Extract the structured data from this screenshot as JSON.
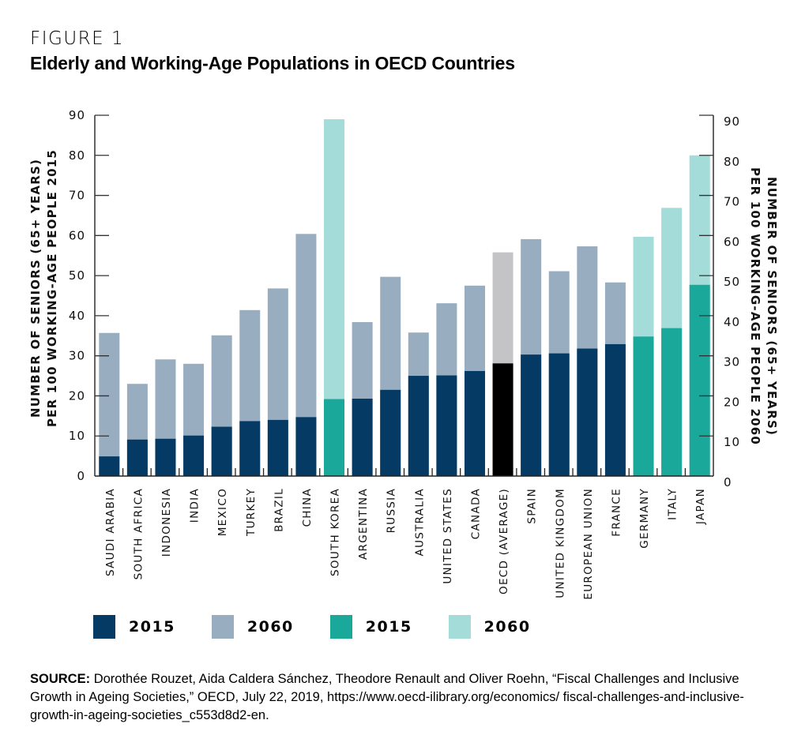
{
  "figure_label": "FIGURE 1",
  "title": "Elderly and Working-Age Populations in OECD Countries",
  "source_label": "SOURCE:",
  "source_text": "Dorothée Rouzet, Aida Caldera Sánchez, Theodore Renault and Oliver Roehn, “Fiscal Challenges and Inclusive Growth in Ageing Societies,” OECD, July 22, 2019, https://www.oecd-ilibrary.org/economics/ fiscal-challenges-and-inclusive-growth-in-ageing-societies_c553d8d2-en.",
  "colors": {
    "2015_default": "#043a63",
    "2060_default": "#98adbf",
    "2015_oecd": "#000000",
    "2060_oecd": "#c4c4c6",
    "2015_highlight": "#1aa89a",
    "2060_highlight": "#a3dcd8"
  },
  "legend": [
    {
      "label": "2015",
      "color": "#043a63"
    },
    {
      "label": "2060",
      "color": "#98adbf"
    },
    {
      "label": "2015",
      "color": "#1aa89a"
    },
    {
      "label": "2060",
      "color": "#a3dcd8"
    }
  ],
  "chart_data": {
    "type": "bar",
    "stacking": "overlay",
    "title": "Elderly and Working-Age Populations in OECD Countries",
    "xlabel": "",
    "ylabel_left": "NUMBER OF SENIORS (65+ YEARS) PER 100 WORKING-AGE PEOPLE 2015",
    "ylabel_right": "NUMBER OF SENIORS (65+ YEARS) PER 100 WORKING-AGE PEOPLE 2060",
    "ylim": [
      0,
      90
    ],
    "yticks": [
      0,
      10,
      20,
      30,
      40,
      50,
      60,
      70,
      80,
      90
    ],
    "grid": false,
    "legend_position": "bottom",
    "categories": [
      "SAUDI ARABIA",
      "SOUTH AFRICA",
      "INDONESIA",
      "INDIA",
      "MEXICO",
      "TURKEY",
      "BRAZIL",
      "CHINA",
      "SOUTH KOREA",
      "ARGENTINA",
      "RUSSIA",
      "AUSTRALIA",
      "UNITED STATES",
      "CANADA",
      "OECD (AVERAGE)",
      "SPAIN",
      "UNITED KINGDOM",
      "EUROPEAN UNION",
      "FRANCE",
      "GERMANY",
      "ITALY",
      "JAPAN"
    ],
    "category_style": [
      "default",
      "default",
      "default",
      "default",
      "default",
      "default",
      "default",
      "default",
      "highlight",
      "default",
      "default",
      "default",
      "default",
      "default",
      "oecd",
      "default",
      "default",
      "default",
      "default",
      "highlight",
      "highlight",
      "highlight"
    ],
    "series": [
      {
        "name": "2015",
        "values": [
          4.9,
          9.1,
          9.3,
          10.1,
          12.3,
          13.7,
          14.0,
          14.7,
          19.2,
          19.3,
          21.5,
          25.0,
          25.1,
          26.2,
          28.1,
          30.3,
          30.6,
          31.8,
          32.9,
          34.8,
          36.9,
          47.7
        ]
      },
      {
        "name": "2060",
        "values": [
          35.7,
          23.0,
          29.1,
          28.0,
          35.1,
          41.4,
          46.8,
          60.4,
          89.0,
          38.4,
          49.7,
          35.8,
          43.1,
          47.5,
          55.8,
          59.1,
          51.1,
          57.3,
          48.3,
          59.7,
          66.9,
          80.0
        ]
      }
    ]
  }
}
